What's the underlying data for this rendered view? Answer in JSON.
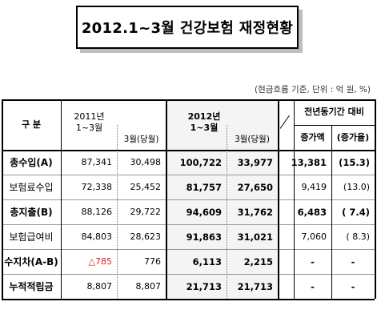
{
  "title": "2012.1~3월  건강보험  재정현황",
  "note": "(현금흐름 기준, 단위 : 억 원, %)",
  "headers": {
    "category": "구    분",
    "prev_period": "2011년\n1~3월",
    "prev_march": "3월(당월)",
    "curr_period": "2012년\n1~3월",
    "curr_march": "3월(당월)",
    "yoy": "전년동기간 대비",
    "increase_amount": "증가액",
    "increase_rate": "(증가율)"
  },
  "rows": [
    {
      "label": "총수입(A)",
      "bold": true,
      "v2011": "87,341",
      "m2011": "30,498",
      "v2012": "100,722",
      "m2012": "33,977",
      "inc": "13,381",
      "rate": "(15.3)"
    },
    {
      "label": "보험료수입",
      "bold": false,
      "v2011": "72,338",
      "m2011": "25,452",
      "v2012": "81,757",
      "m2012": "27,650",
      "inc": "9,419",
      "rate": "(13.0)"
    },
    {
      "label": "총지출(B)",
      "bold": true,
      "v2011": "88,126",
      "m2011": "29,722",
      "v2012": "94,609",
      "m2012": "31,762",
      "inc": "6,483",
      "rate": "( 7.4)"
    },
    {
      "label": "보험급여비",
      "bold": false,
      "v2011": "84,803",
      "m2011": "28,623",
      "v2012": "91,863",
      "m2012": "31,021",
      "inc": "7,060",
      "rate": "( 8.3)"
    },
    {
      "label": "수지차(A-B)",
      "bold": true,
      "v2011": "△785",
      "m2011": "776",
      "v2012": "6,113",
      "m2012": "2,215",
      "inc": "-",
      "rate": "-"
    },
    {
      "label": "누적적립금",
      "bold": true,
      "v2011": "8,807",
      "m2011": "8,807",
      "v2012": "21,713",
      "m2012": "21,713",
      "inc": "-",
      "rate": "-"
    }
  ],
  "colors": {
    "negative": "#e02020",
    "title_shadow": "#bdbdbd"
  }
}
